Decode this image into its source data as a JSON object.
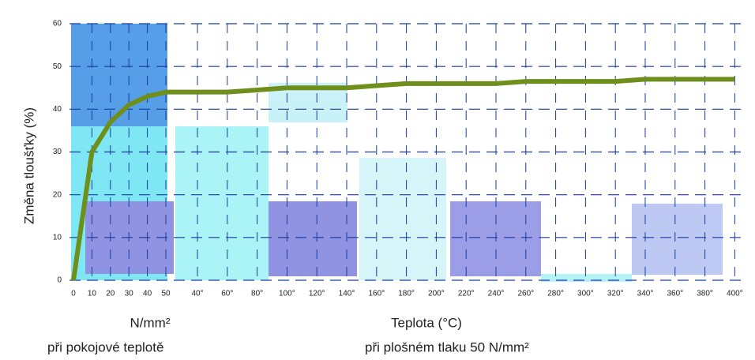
{
  "chart_data": {
    "type": "line",
    "y_label": "Změna tloušťky (%)",
    "x_label_left": "N/mm²",
    "x_label_right": "Teplota (°C)",
    "note_left": "při pokojové teplotě",
    "note_right": "při plošném tlaku 50 N/mm²",
    "categories": [
      "0",
      "10",
      "20",
      "30",
      "40",
      "50",
      "40°",
      "60°",
      "80°",
      "100°",
      "120°",
      "140°",
      "160°",
      "180°",
      "200°",
      "220°",
      "240°",
      "260°",
      "280°",
      "300°",
      "320°",
      "340°",
      "360°",
      "380°",
      "400°"
    ],
    "series": [
      {
        "color": "#6f8f1c",
        "values": [
          0,
          30,
          37,
          41,
          43,
          44,
          44,
          44,
          44.5,
          45,
          45,
          45,
          45.5,
          46,
          46,
          46,
          46,
          46.5,
          46.5,
          46.5,
          46.5,
          47,
          47,
          47,
          47
        ]
      }
    ],
    "ylim": [
      0,
      60
    ],
    "yticks": [
      0,
      10,
      20,
      30,
      40,
      50,
      60
    ],
    "grid": true
  }
}
